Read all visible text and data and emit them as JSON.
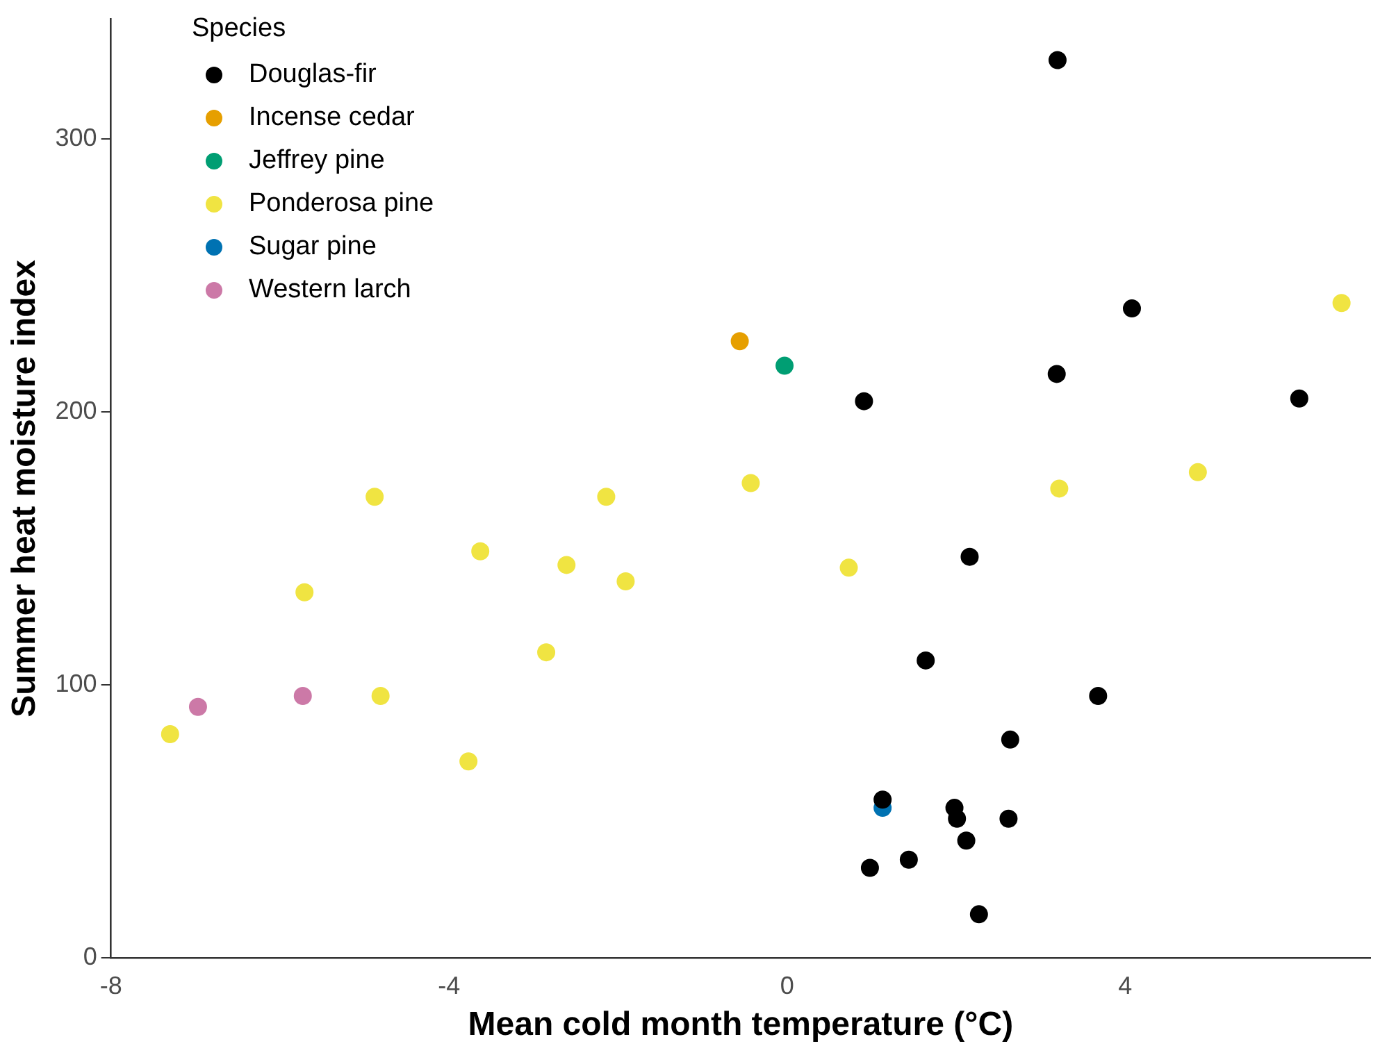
{
  "chart_data": {
    "type": "scatter",
    "xlabel": "Mean cold month temperature (°C)",
    "ylabel": "Summer heat moisture index",
    "legend_title": "Species",
    "legend": "top left",
    "grid": false,
    "marker": "circle",
    "xlim": [
      -8,
      6.9
    ],
    "xticks": [
      -8,
      -4,
      0,
      4
    ],
    "ylim": [
      0,
      344
    ],
    "yticks": [
      0,
      100,
      200,
      300
    ],
    "series": [
      {
        "name": "Douglas-fir",
        "color": "#000000",
        "x": [
          3.2,
          4.08,
          3.19,
          6.06,
          0.91,
          2.16,
          1.64,
          3.68,
          2.64,
          1.13,
          1.98,
          2.01,
          2.62,
          2.12,
          1.44,
          0.98,
          2.27
        ],
        "values": [
          329,
          238,
          214,
          205,
          204,
          147,
          109,
          96,
          80,
          58,
          55,
          51,
          51,
          43,
          36,
          33,
          16
        ]
      },
      {
        "name": "Incense cedar",
        "color": "#e69f00",
        "x": [
          -0.56
        ],
        "values": [
          226
        ]
      },
      {
        "name": "Jeffrey pine",
        "color": "#009e73",
        "x": [
          -0.03
        ],
        "values": [
          217
        ]
      },
      {
        "name": "Ponderosa pine",
        "color": "#f0e442",
        "x": [
          6.56,
          4.86,
          3.22,
          -0.43,
          -2.14,
          -4.88,
          -3.63,
          -2.61,
          0.73,
          -1.91,
          -5.71,
          -2.85,
          -4.81,
          -3.77,
          -7.3
        ],
        "values": [
          240,
          178,
          172,
          174,
          169,
          169,
          149,
          144,
          143,
          138,
          134,
          112,
          96,
          72,
          82
        ]
      },
      {
        "name": "Sugar pine",
        "color": "#0072b2",
        "x": [
          1.13
        ],
        "values": [
          55
        ]
      },
      {
        "name": "Western larch",
        "color": "#cc79a7",
        "x": [
          -6.97,
          -5.73
        ],
        "values": [
          92,
          96
        ]
      }
    ]
  }
}
